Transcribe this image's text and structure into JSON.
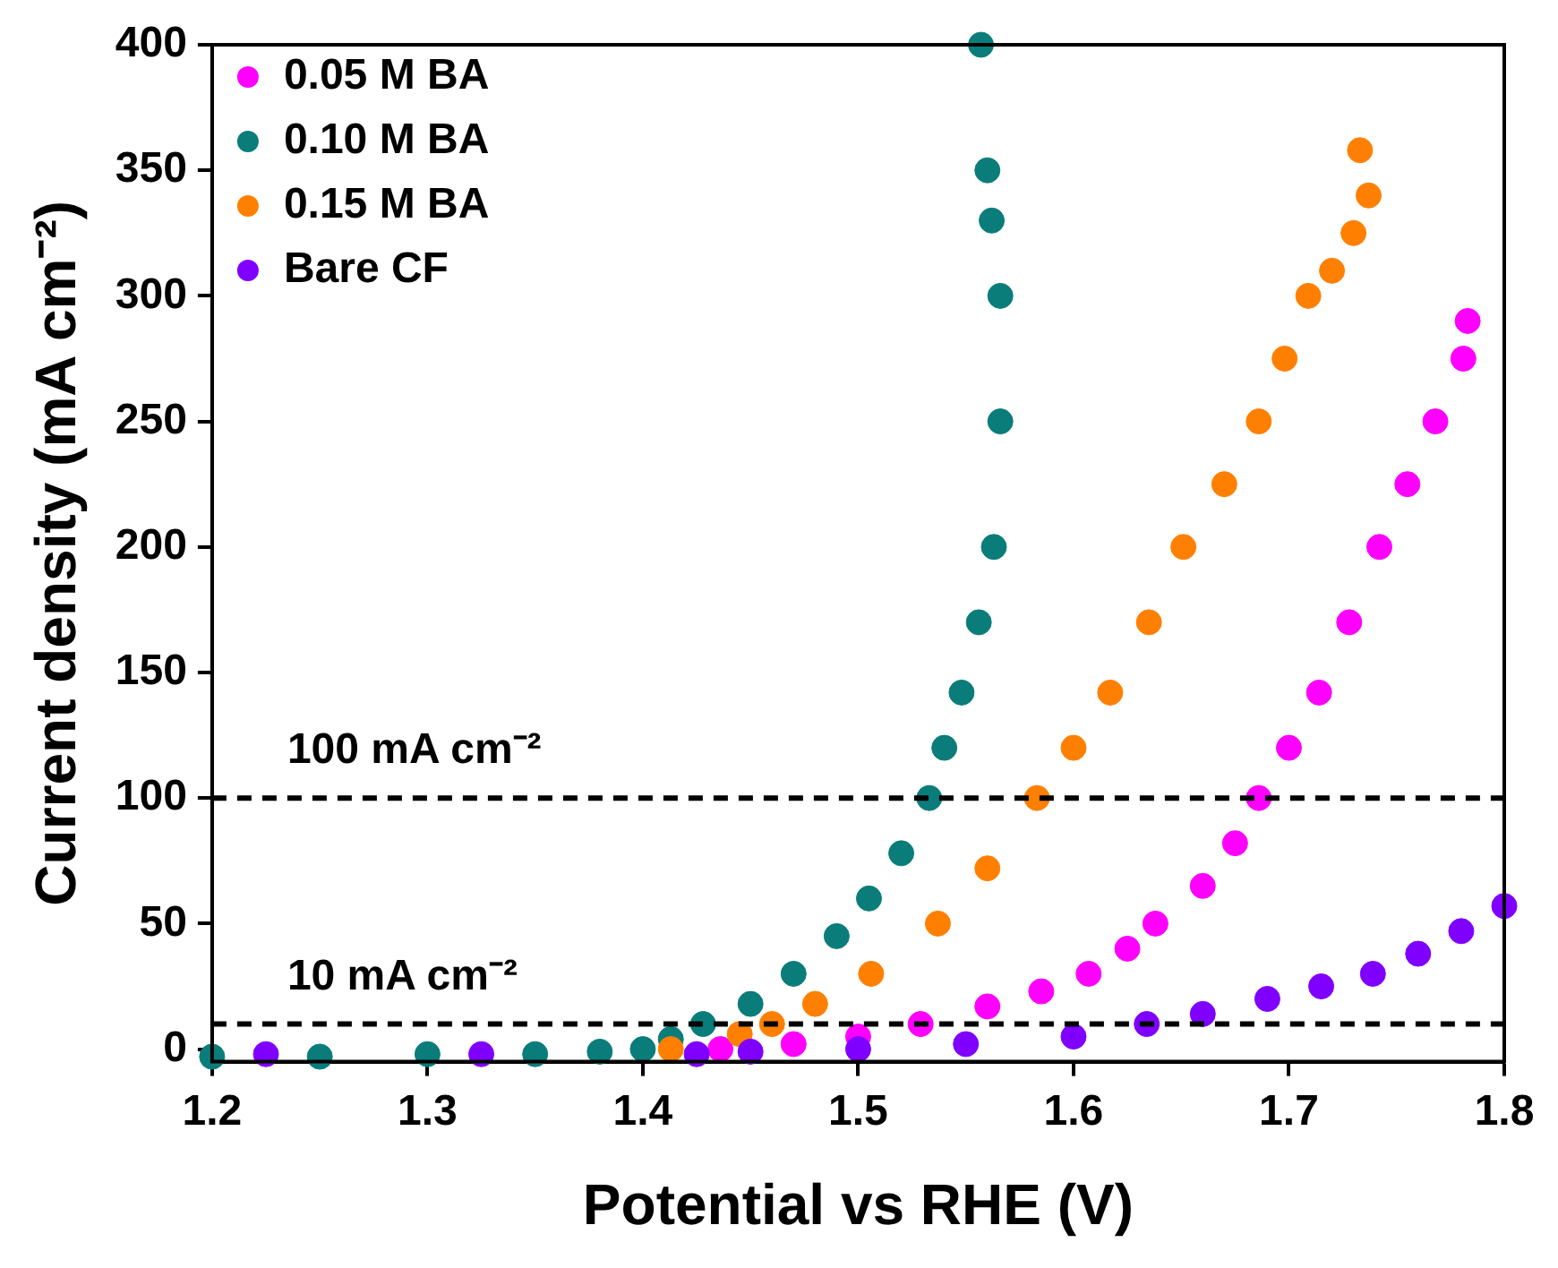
{
  "chart_data": {
    "type": "scatter",
    "xlabel": "Potential vs RHE (V)",
    "ylabel": "Current density (mA cm⁻²)",
    "xlim": [
      1.2,
      1.8
    ],
    "xticks": [
      1.2,
      1.3,
      1.4,
      1.5,
      1.6,
      1.7,
      1.8
    ],
    "ylim": [
      -5,
      400
    ],
    "yticks": [
      0,
      50,
      100,
      150,
      200,
      250,
      300,
      350,
      400
    ],
    "grid": false,
    "legend": "top left",
    "marker": "circle",
    "ref_lines": [
      {
        "axis": "y",
        "value": 100,
        "label": "100 mA cm⁻²",
        "line_style": "dashed",
        "color": "#000000"
      },
      {
        "axis": "y",
        "value": 10,
        "label": "10 mA cm⁻²",
        "line_style": "dashed",
        "color": "#000000"
      }
    ],
    "series": [
      {
        "name": "0.05 M BA",
        "color": "#ff00ff",
        "x": [
          1.436,
          1.47,
          1.5,
          1.529,
          1.56,
          1.585,
          1.607,
          1.625,
          1.638,
          1.66,
          1.675,
          1.686,
          1.7,
          1.714,
          1.728,
          1.742,
          1.755,
          1.768,
          1.781,
          1.783
        ],
        "values": [
          0,
          2,
          5,
          10,
          17,
          23,
          30,
          40,
          50,
          65,
          82,
          100,
          120,
          142,
          170,
          200,
          225,
          250,
          275,
          290
        ]
      },
      {
        "name": "0.10 M BA",
        "color": "#0a7d7a",
        "x": [
          1.2,
          1.25,
          1.3,
          1.35,
          1.38,
          1.4,
          1.413,
          1.428,
          1.45,
          1.47,
          1.49,
          1.505,
          1.52,
          1.533,
          1.54,
          1.548,
          1.556,
          1.563,
          1.566,
          1.566,
          1.562,
          1.56,
          1.557
        ],
        "values": [
          -3,
          -3,
          -2,
          -2,
          -1,
          0,
          4,
          10,
          18,
          30,
          45,
          60,
          78,
          100,
          120,
          142,
          170,
          200,
          250,
          300,
          330,
          350,
          400
        ]
      },
      {
        "name": "0.15 M BA",
        "color": "#ff8000",
        "x": [
          1.413,
          1.445,
          1.46,
          1.48,
          1.506,
          1.537,
          1.56,
          1.583,
          1.6,
          1.617,
          1.635,
          1.651,
          1.67,
          1.686,
          1.698,
          1.709,
          1.72,
          1.73,
          1.737,
          1.733
        ],
        "values": [
          0,
          6,
          10,
          18,
          30,
          50,
          72,
          100,
          120,
          142,
          170,
          200,
          225,
          250,
          275,
          300,
          310,
          325,
          340,
          358
        ]
      },
      {
        "name": "Bare CF",
        "color": "#8000ff",
        "x": [
          1.225,
          1.325,
          1.425,
          1.45,
          1.5,
          1.55,
          1.6,
          1.634,
          1.66,
          1.69,
          1.715,
          1.739,
          1.76,
          1.78,
          1.8
        ],
        "values": [
          -2,
          -2,
          -2,
          -1,
          0,
          2,
          5,
          10,
          14,
          20,
          25,
          30,
          38,
          47,
          57
        ]
      }
    ]
  }
}
